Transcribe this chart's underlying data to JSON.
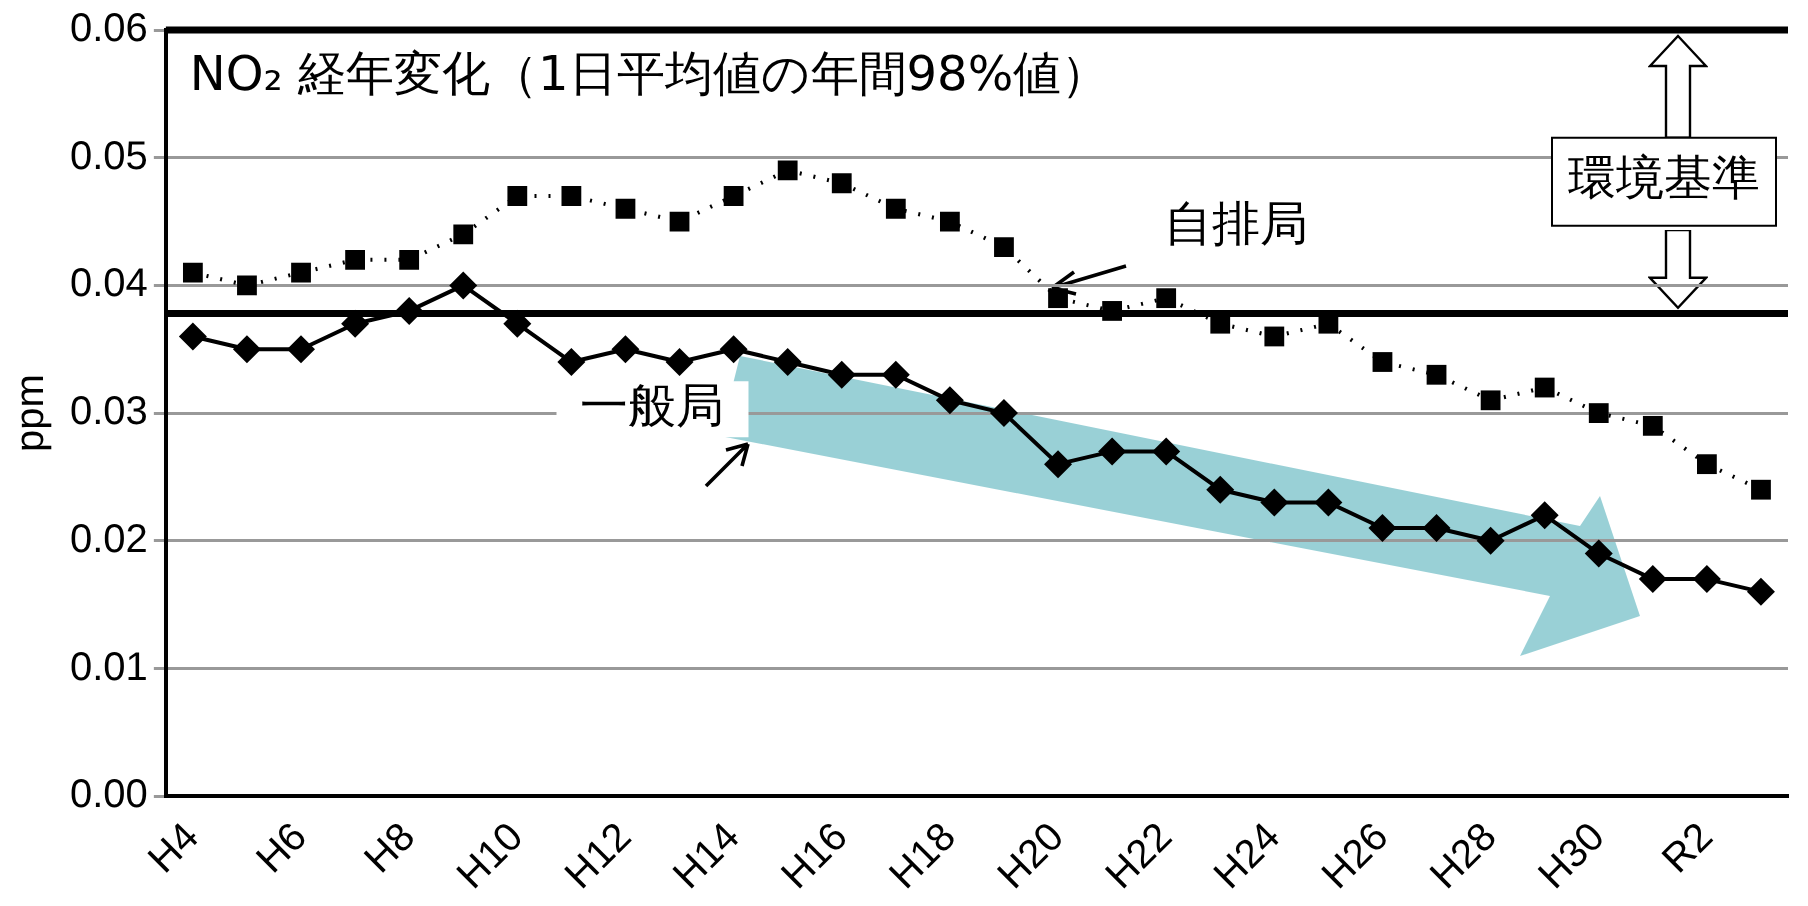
{
  "chart_data": {
    "type": "line",
    "title": "NO₂ 経年変化（1日平均値の年間98%値）",
    "ylabel": "ppm",
    "categories": [
      "H4",
      null,
      "H6",
      null,
      "H8",
      null,
      "H10",
      null,
      "H12",
      null,
      "H14",
      null,
      "H16",
      null,
      "H18",
      null,
      "H20",
      null,
      "H22",
      null,
      "H24",
      null,
      "H26",
      null,
      "H28",
      null,
      "H30",
      null,
      "R2",
      null
    ],
    "series": [
      {
        "name": "自排局",
        "color": "#000000",
        "marker": "square",
        "line_style": "dotted",
        "values": [
          0.041,
          0.04,
          0.041,
          0.042,
          0.042,
          0.044,
          0.047,
          0.047,
          0.046,
          0.045,
          0.047,
          0.049,
          0.048,
          0.046,
          0.045,
          0.043,
          0.039,
          0.038,
          0.039,
          0.037,
          0.036,
          0.037,
          0.034,
          0.033,
          0.031,
          0.032,
          0.03,
          0.029,
          0.026,
          0.024
        ]
      },
      {
        "name": "一般局",
        "color": "#000000",
        "marker": "diamond",
        "line_style": "solid",
        "values": [
          0.036,
          0.035,
          0.035,
          0.037,
          0.038,
          0.04,
          0.037,
          0.034,
          0.035,
          0.034,
          0.035,
          0.034,
          0.033,
          0.033,
          0.031,
          0.03,
          0.026,
          0.027,
          0.027,
          0.024,
          0.023,
          0.023,
          0.021,
          0.021,
          0.02,
          0.022,
          0.019,
          0.017,
          0.017,
          0.016
        ]
      }
    ],
    "ylim": [
      0,
      0.06
    ],
    "yticks": [
      {
        "value": 0,
        "label": "0.00"
      },
      {
        "value": 0.01,
        "label": "0.01"
      },
      {
        "value": 0.02,
        "label": "0.02"
      },
      {
        "value": 0.03,
        "label": "0.03"
      },
      {
        "value": 0.04,
        "label": "0.04"
      },
      {
        "value": 0.05,
        "label": "0.05"
      },
      {
        "value": 0.06,
        "label": "0.06"
      }
    ],
    "grid": "y",
    "legend": false,
    "ref_lines": [
      {
        "axis": "y",
        "value": 0.06,
        "color": "#000000"
      },
      {
        "axis": "y",
        "value": 0.0378,
        "color": "#000000"
      }
    ],
    "annotations": [
      "環境基準"
    ]
  }
}
